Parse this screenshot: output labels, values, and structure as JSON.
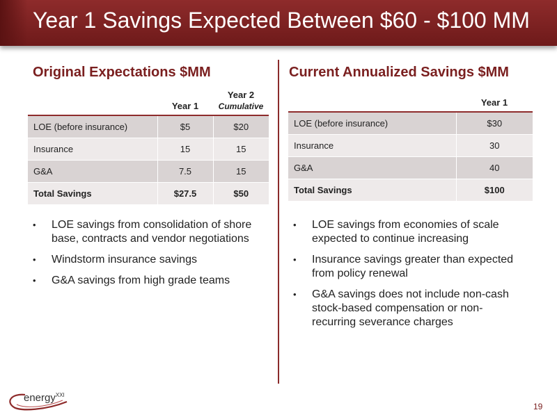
{
  "slide": {
    "title": "Year 1 Savings Expected Between $60 - $100 MM",
    "page_number": "19"
  },
  "left": {
    "heading": "Original Expectations $MM",
    "headers": {
      "col1": "Year 1",
      "col2": "Year 2",
      "col2_sub": "Cumulative"
    },
    "rows": [
      {
        "label": "LOE (before insurance)",
        "y1": "$5",
        "y2": "$20"
      },
      {
        "label": "Insurance",
        "y1": "15",
        "y2": "15"
      },
      {
        "label": "G&A",
        "y1": "7.5",
        "y2": "15"
      },
      {
        "label": "Total Savings",
        "y1": "$27.5",
        "y2": "$50"
      }
    ],
    "bullets": [
      "LOE savings from consolidation of shore base, contracts and vendor negotiations",
      "Windstorm insurance savings",
      "G&A savings from high grade teams"
    ]
  },
  "right": {
    "heading": "Current Annualized Savings $MM",
    "headers": {
      "col1": "Year 1"
    },
    "rows": [
      {
        "label": "LOE (before insurance)",
        "y1": "$30"
      },
      {
        "label": "Insurance",
        "y1": "30"
      },
      {
        "label": "G&A",
        "y1": "40"
      },
      {
        "label": "Total Savings",
        "y1": "$100"
      }
    ],
    "bullets": [
      "LOE savings from economies of scale expected to continue increasing",
      "Insurance savings greater than expected from policy renewal",
      "G&A savings does not include non-cash stock-based compensation or non-recurring severance charges"
    ]
  },
  "logo": {
    "name": "energy",
    "superscript": "XXI"
  },
  "colors": {
    "brand": "#7a1f1f",
    "title_bar": "#8e2b2b",
    "row_shade": "#d9d3d3",
    "row_light": "#eeeaea"
  }
}
